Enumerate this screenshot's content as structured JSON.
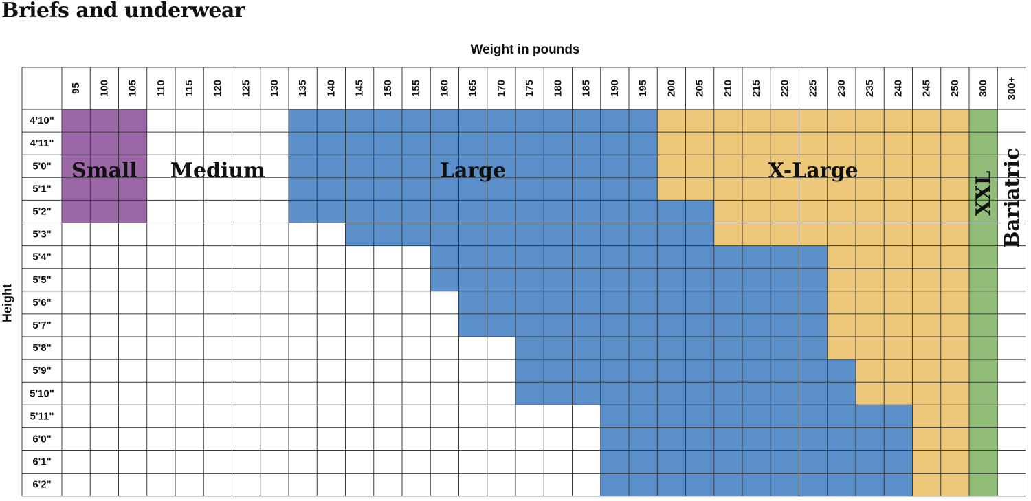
{
  "page": {
    "title": "Briefs and underwear"
  },
  "chart_data": {
    "type": "heatmap",
    "title": "Briefs and underwear",
    "xlabel": "Weight in pounds",
    "ylabel": "Height",
    "x": [
      "95",
      "100",
      "105",
      "110",
      "115",
      "120",
      "125",
      "130",
      "135",
      "140",
      "145",
      "150",
      "155",
      "160",
      "165",
      "170",
      "175",
      "180",
      "185",
      "190",
      "195",
      "200",
      "205",
      "210",
      "215",
      "220",
      "225",
      "230",
      "235",
      "240",
      "245",
      "250",
      "300",
      "300+"
    ],
    "y": [
      "4'10\"",
      "4'11\"",
      "5'0\"",
      "5'1\"",
      "5'2\"",
      "5'3\"",
      "5'4\"",
      "5'5\"",
      "5'6\"",
      "5'7\"",
      "5'8\"",
      "5'9\"",
      "5'10\"",
      "5'11\"",
      "6'0\"",
      "6'1\"",
      "6'2\""
    ],
    "sizes": [
      {
        "name": "Small",
        "color": "#9b67a6"
      },
      {
        "name": "Medium",
        "color": "#ffffff"
      },
      {
        "name": "Large",
        "color": "#5b8fc9"
      },
      {
        "name": "X-Large",
        "color": "#edc87a"
      },
      {
        "name": "XXL",
        "color": "#92bd78"
      },
      {
        "name": "Bariatric",
        "color": "#ffffff"
      }
    ],
    "rows": [
      {
        "height": "4'10\"",
        "small_max": "105",
        "large_from": "135",
        "xlarge_from": "200"
      },
      {
        "height": "4'11\"",
        "small_max": "105",
        "large_from": "135",
        "xlarge_from": "200"
      },
      {
        "height": "5'0\"",
        "small_max": "105",
        "large_from": "135",
        "xlarge_from": "200"
      },
      {
        "height": "5'1\"",
        "small_max": "105",
        "large_from": "135",
        "xlarge_from": "200"
      },
      {
        "height": "5'2\"",
        "small_max": "105",
        "large_from": "135",
        "xlarge_from": "210"
      },
      {
        "height": "5'3\"",
        "small_max": null,
        "large_from": "145",
        "xlarge_from": "210"
      },
      {
        "height": "5'4\"",
        "small_max": null,
        "large_from": "160",
        "xlarge_from": "230"
      },
      {
        "height": "5'5\"",
        "small_max": null,
        "large_from": "160",
        "xlarge_from": "230"
      },
      {
        "height": "5'6\"",
        "small_max": null,
        "large_from": "165",
        "xlarge_from": "230"
      },
      {
        "height": "5'7\"",
        "small_max": null,
        "large_from": "165",
        "xlarge_from": "230"
      },
      {
        "height": "5'8\"",
        "small_max": null,
        "large_from": "175",
        "xlarge_from": "230"
      },
      {
        "height": "5'9\"",
        "small_max": null,
        "large_from": "175",
        "xlarge_from": "235"
      },
      {
        "height": "5'10\"",
        "small_max": null,
        "large_from": "175",
        "xlarge_from": "235"
      },
      {
        "height": "5'11\"",
        "small_max": null,
        "large_from": "190",
        "xlarge_from": "245"
      },
      {
        "height": "6'0\"",
        "small_max": null,
        "large_from": "190",
        "xlarge_from": "245"
      },
      {
        "height": "6'1\"",
        "small_max": null,
        "large_from": "190",
        "xlarge_from": "245"
      },
      {
        "height": "6'2\"",
        "small_max": null,
        "large_from": "190",
        "xlarge_from": "245"
      }
    ],
    "xxl_column": "300",
    "bariatric_column": "300+",
    "grid": true
  }
}
